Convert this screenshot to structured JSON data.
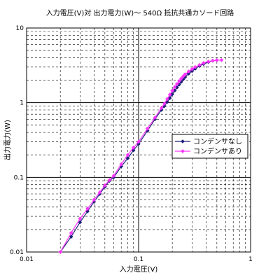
{
  "chart_data": {
    "type": "line",
    "title": "入力電圧(V)対 出力電力(W)～ 540Ω 抵抗共通カソード回路",
    "xlabel": "入力電圧(V)",
    "ylabel": "出力電力(W)",
    "x_scale": "log",
    "y_scale": "log",
    "xlim": [
      0.01,
      1
    ],
    "ylim": [
      0.01,
      10
    ],
    "x_ticks": [
      "0.01",
      "0.1",
      "1"
    ],
    "y_ticks": [
      "0.01",
      "0.1",
      "1",
      "10"
    ],
    "grid": true,
    "legend_position": "right",
    "series": [
      {
        "name": "コンデンサなし",
        "color": "#1f1f7a",
        "marker": "diamond",
        "x": [
          0.02,
          0.025,
          0.03,
          0.035,
          0.04,
          0.045,
          0.05,
          0.055,
          0.06,
          0.07,
          0.08,
          0.09,
          0.1,
          0.12,
          0.14,
          0.16,
          0.17,
          0.18,
          0.19,
          0.2,
          0.21,
          0.22,
          0.23,
          0.24,
          0.25,
          0.26,
          0.28,
          0.3,
          0.32,
          0.35,
          0.38,
          0.42,
          0.46,
          0.5
        ],
        "y": [
          0.01,
          0.016,
          0.025,
          0.035,
          0.047,
          0.06,
          0.075,
          0.09,
          0.1,
          0.14,
          0.18,
          0.23,
          0.28,
          0.42,
          0.6,
          0.8,
          0.9,
          1.02,
          1.15,
          1.3,
          1.45,
          1.6,
          1.75,
          1.9,
          2.05,
          2.2,
          2.45,
          2.65,
          2.85,
          3.1,
          3.3,
          3.5,
          3.65,
          3.7
        ]
      },
      {
        "name": "コンデンサあり",
        "color": "#ff33ff",
        "marker": "diamond",
        "x": [
          0.02,
          0.025,
          0.03,
          0.035,
          0.04,
          0.045,
          0.05,
          0.055,
          0.06,
          0.07,
          0.08,
          0.09,
          0.1,
          0.12,
          0.14,
          0.16,
          0.17,
          0.18,
          0.19,
          0.2,
          0.21,
          0.22,
          0.23,
          0.24,
          0.25,
          0.26,
          0.28,
          0.3,
          0.32,
          0.35,
          0.38,
          0.42,
          0.46,
          0.5,
          0.55
        ],
        "y": [
          0.01,
          0.018,
          0.028,
          0.038,
          0.05,
          0.063,
          0.078,
          0.092,
          0.105,
          0.15,
          0.2,
          0.25,
          0.3,
          0.45,
          0.63,
          0.85,
          0.97,
          1.12,
          1.28,
          1.45,
          1.62,
          1.78,
          1.95,
          2.1,
          2.25,
          2.4,
          2.62,
          2.82,
          3.0,
          3.2,
          3.4,
          3.55,
          3.65,
          3.7,
          3.72
        ]
      }
    ]
  }
}
